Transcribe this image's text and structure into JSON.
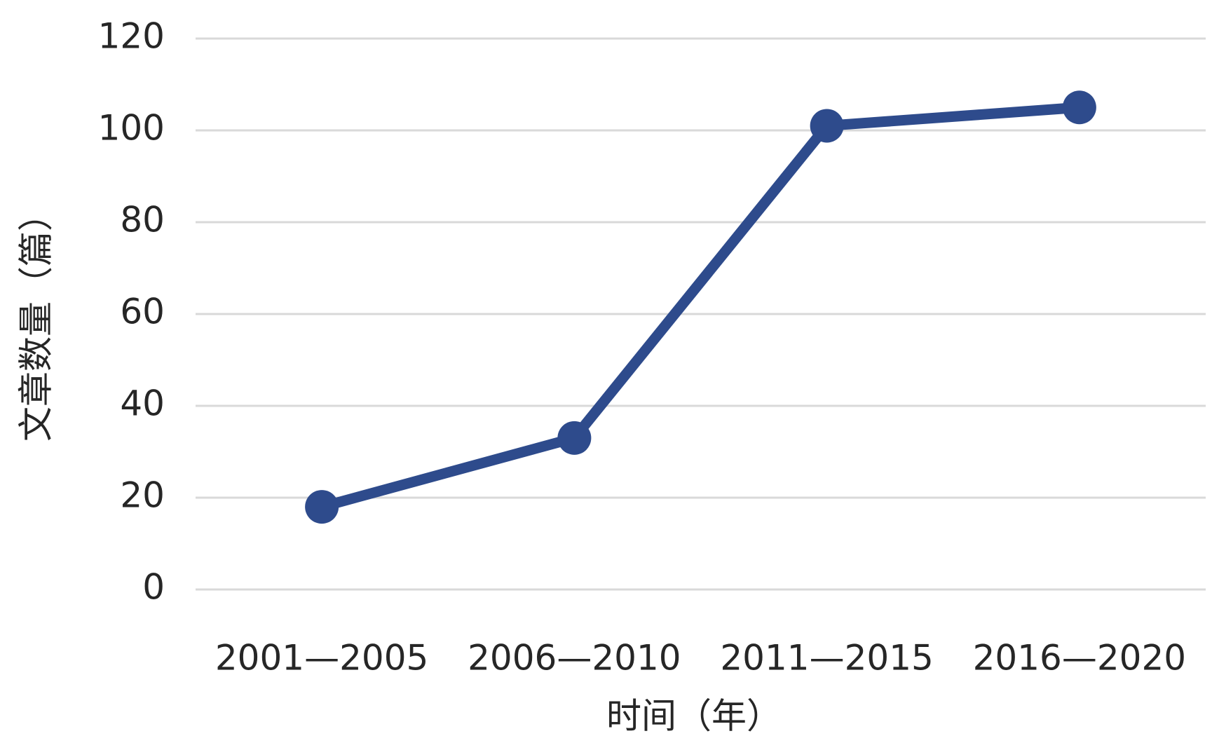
{
  "chart_data": {
    "type": "line",
    "x_label": "时间（年）",
    "y_label": "文章数量（篇）",
    "categories": [
      "2001—2005",
      "2006—2010",
      "2011—2015",
      "2016—2020"
    ],
    "series": [
      {
        "name": "文章数量",
        "color": "#2e4b8c",
        "values": [
          18,
          33,
          101,
          105
        ]
      }
    ],
    "ylim": [
      0,
      120
    ],
    "yticks": [
      0,
      20,
      40,
      60,
      80,
      100,
      120
    ],
    "grid": true
  }
}
